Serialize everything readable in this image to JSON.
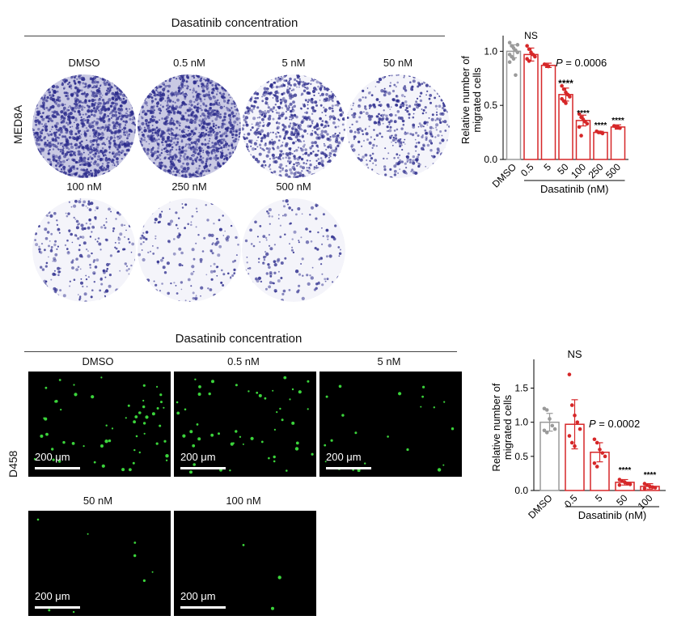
{
  "colors": {
    "control": "#9a9a9a",
    "treated": "#d62728",
    "stain": "#2b2b8c",
    "fluor": "#3bd43b"
  },
  "top": {
    "title": "Dasatinib concentration",
    "row_label": "MED8A",
    "conditions": [
      "DMSO",
      "0.5 nM",
      "5 nM",
      "50 nM",
      "100 nM",
      "250 nM",
      "500 nM"
    ]
  },
  "bottom": {
    "title": "Dasatinib concentration",
    "row_label": "D458",
    "conditions": [
      "DMSO",
      "0.5 nM",
      "5 nM",
      "50 nM",
      "100 nM"
    ],
    "scale_label": "200 μm"
  },
  "chart_data": [
    {
      "type": "bar",
      "categories": [
        "DMSO",
        "0.5",
        "5",
        "50",
        "100",
        "250",
        "500"
      ],
      "values": [
        1.0,
        0.97,
        0.87,
        0.6,
        0.36,
        0.25,
        0.3
      ],
      "errors": [
        0.06,
        0.06,
        0.02,
        0.06,
        0.05,
        0.01,
        0.02
      ],
      "ylabel": "Relative number of migrated cells",
      "xlabel": "Dasatinib (nM)",
      "ylim": [
        0,
        1.1
      ],
      "yticks": [
        "0.0",
        "0.5",
        "1.0"
      ],
      "annotations": [
        "NS",
        "P = 0.0006",
        "****",
        "****",
        "****",
        "****"
      ],
      "points": [
        [
          1.08,
          1.05,
          1.03,
          1.01,
          0.99,
          0.97,
          0.95,
          0.93,
          0.78,
          1.06,
          0.9
        ],
        [
          1.05,
          1.02,
          0.99,
          0.97,
          0.95,
          0.93,
          0.91
        ],
        [
          0.88,
          0.87,
          0.86
        ],
        [
          0.68,
          0.65,
          0.62,
          0.6,
          0.58,
          0.56,
          0.54,
          0.52
        ],
        [
          0.42,
          0.39,
          0.37,
          0.35,
          0.33,
          0.3,
          0.22
        ],
        [
          0.26,
          0.25,
          0.25,
          0.24
        ],
        [
          0.31,
          0.3,
          0.3,
          0.29
        ]
      ]
    },
    {
      "type": "bar",
      "categories": [
        "DMSO",
        "0.5",
        "5",
        "50",
        "100"
      ],
      "values": [
        1.0,
        0.97,
        0.56,
        0.12,
        0.06
      ],
      "errors": [
        0.13,
        0.36,
        0.14,
        0.04,
        0.04
      ],
      "ylabel": "Relative number of migrated cells",
      "xlabel": "Dasatinib (nM)",
      "ylim": [
        0,
        1.85
      ],
      "yticks": [
        "0.0",
        "0.5",
        "1.0",
        "1.5"
      ],
      "annotations": [
        "NS",
        "P = 0.0002",
        "****",
        "****"
      ],
      "points": [
        [
          1.2,
          1.18,
          1.05,
          0.95,
          0.9,
          0.88,
          0.85
        ],
        [
          1.7,
          1.25,
          1.1,
          1.0,
          0.9,
          0.8,
          0.7,
          0.65
        ],
        [
          0.75,
          0.7,
          0.6,
          0.55,
          0.5,
          0.4,
          0.35
        ],
        [
          0.16,
          0.14,
          0.12,
          0.1,
          0.09,
          0.08
        ],
        [
          0.1,
          0.08,
          0.06,
          0.05,
          0.04,
          0.03
        ]
      ]
    }
  ]
}
